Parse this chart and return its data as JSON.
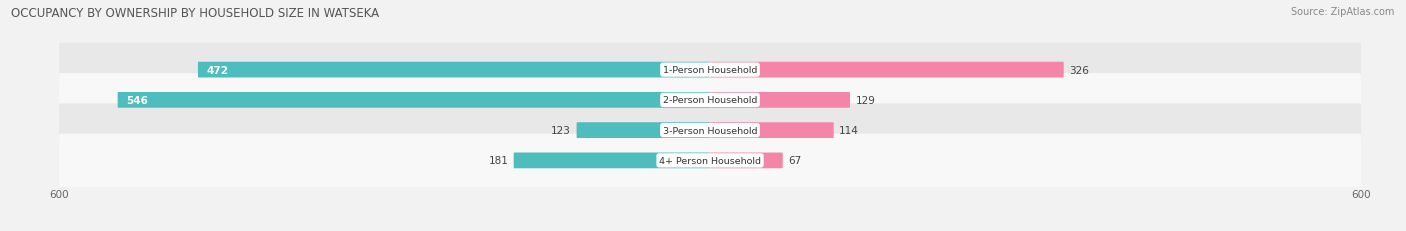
{
  "title": "OCCUPANCY BY OWNERSHIP BY HOUSEHOLD SIZE IN WATSEKA",
  "source": "Source: ZipAtlas.com",
  "categories": [
    "1-Person Household",
    "2-Person Household",
    "3-Person Household",
    "4+ Person Household"
  ],
  "owner_values": [
    472,
    546,
    123,
    181
  ],
  "renter_values": [
    326,
    129,
    114,
    67
  ],
  "owner_color": "#4dbdbd",
  "renter_color": "#f485a8",
  "axis_max": 600,
  "bg_color": "#f2f2f2",
  "row_bg_even": "#e8e8e8",
  "row_bg_odd": "#f8f8f8",
  "title_fontsize": 8.5,
  "source_fontsize": 7,
  "tick_fontsize": 7.5,
  "bar_label_fontsize": 7.5,
  "category_fontsize": 6.8,
  "legend_fontsize": 7.5
}
